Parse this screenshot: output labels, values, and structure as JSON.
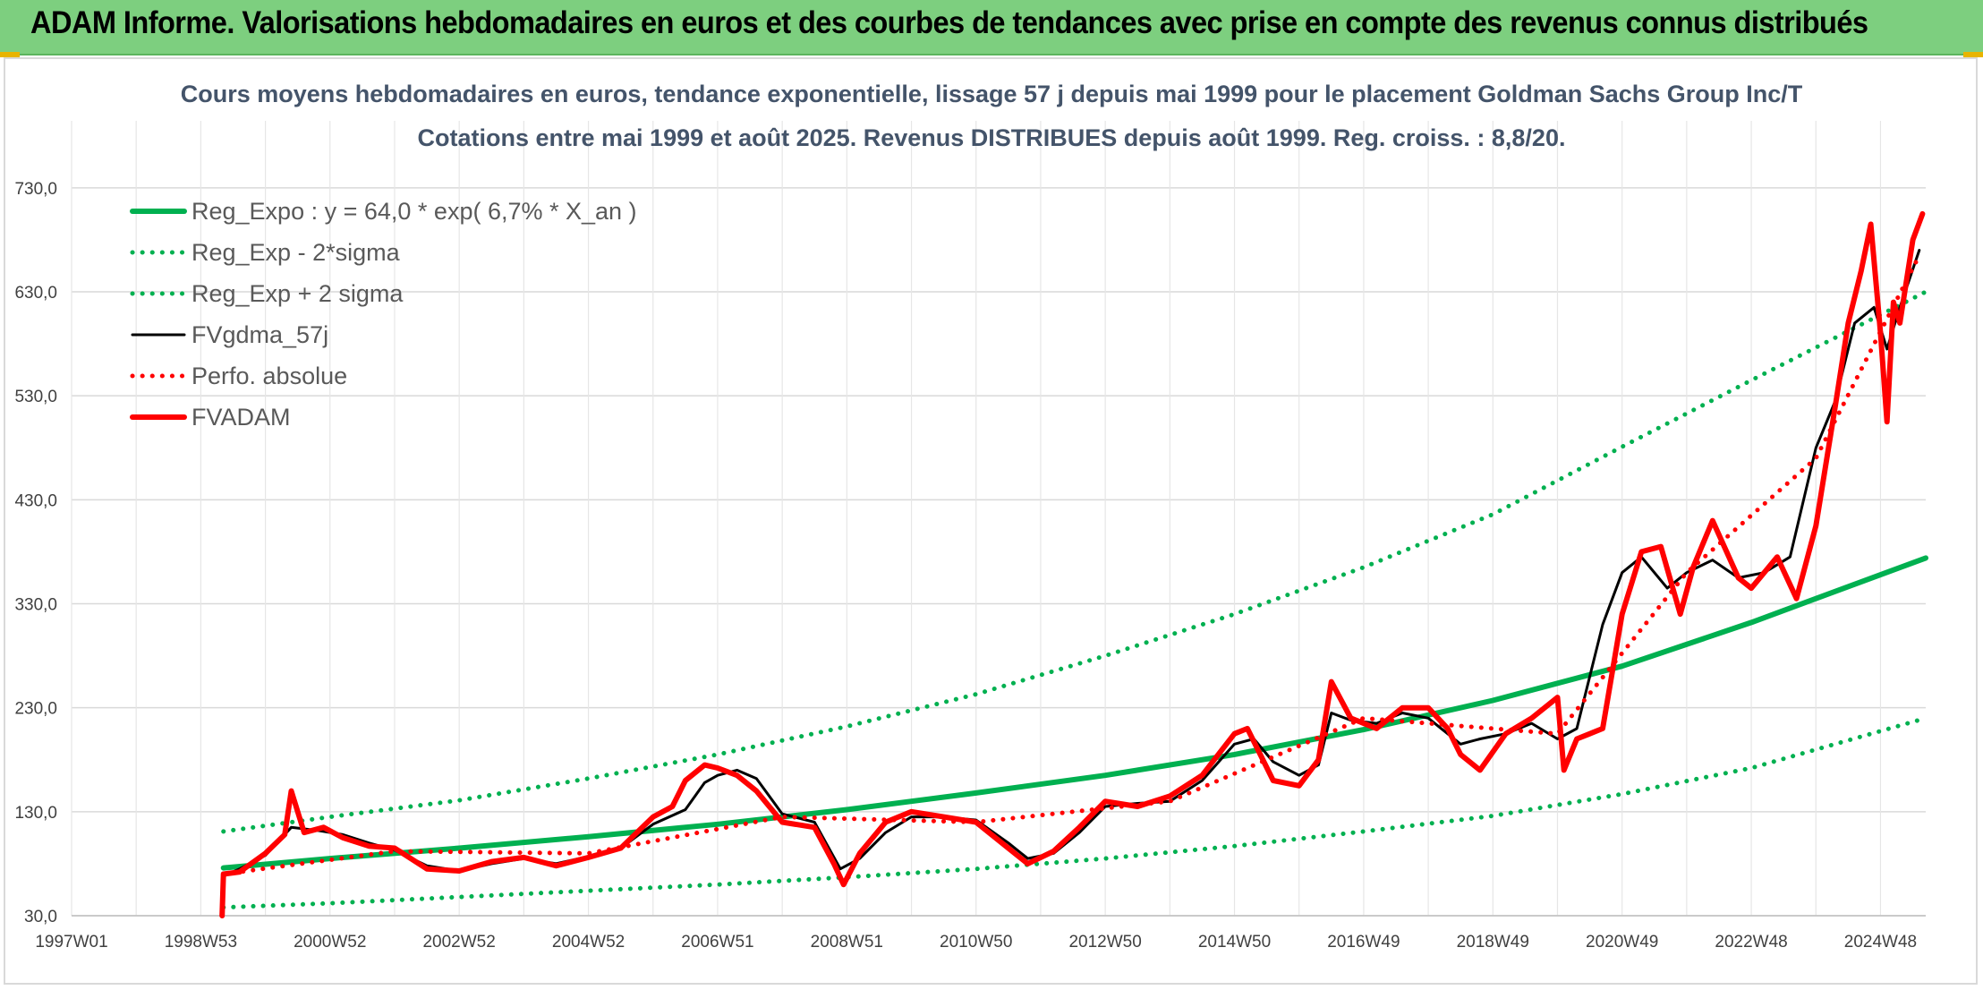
{
  "header": {
    "title": "ADAM Informe. Valorisations hebdomadaires en euros et des courbes de tendances avec prise en compte des revenus connus distribués"
  },
  "chart_data": {
    "type": "line",
    "title": "Cours moyens hebdomadaires en euros, tendance exponentielle, lissage 57 j depuis mai 1999 pour le placement Goldman Sachs Group Inc/T",
    "subtitle": "Cotations entre mai 1999 et août 2025. Revenus DISTRIBUES depuis août 1999. Reg. croiss. : 8,8/20.",
    "xlabel": "",
    "ylabel": "",
    "x_range": [
      1997.0,
      2025.7
    ],
    "ylim": [
      30,
      760
    ],
    "y_ticks": [
      "30,0",
      "130,0",
      "230,0",
      "330,0",
      "430,0",
      "530,0",
      "630,0",
      "730,0"
    ],
    "y_tick_values": [
      30,
      130,
      230,
      330,
      430,
      530,
      630,
      730
    ],
    "x_ticks": [
      "1997W01",
      "1998W53",
      "2000W52",
      "2002W52",
      "2004W52",
      "2006W51",
      "2008W51",
      "2010W50",
      "2012W50",
      "2014W50",
      "2016W49",
      "2018W49",
      "2020W49",
      "2022W48",
      "2024W48"
    ],
    "x_tick_values": [
      1997.0,
      1999.0,
      2001.0,
      2003.0,
      2005.0,
      2007.0,
      2009.0,
      2011.0,
      2013.0,
      2015.0,
      2017.0,
      2019.0,
      2021.0,
      2023.0,
      2025.0
    ],
    "grid": true,
    "legend_position": "top-left",
    "series": [
      {
        "name": "Reg_Expo : y = 64,0 * exp( 6,7% *  X_an )",
        "style": "solid-thick",
        "color": "#00b050",
        "x": [
          1999.35,
          2001,
          2003,
          2005,
          2007,
          2009,
          2011,
          2013,
          2015,
          2017,
          2019,
          2021,
          2023,
          2025.7
        ],
        "values": [
          76,
          85,
          95,
          106,
          118,
          132,
          148,
          165,
          185,
          209,
          237,
          270,
          312,
          374
        ]
      },
      {
        "name": "Reg_Exp - 2*sigma",
        "style": "dotted",
        "color": "#00b050",
        "x": [
          1999.35,
          2001,
          2003,
          2005,
          2007,
          2009,
          2011,
          2013,
          2015,
          2017,
          2019,
          2021,
          2023,
          2025.7
        ],
        "values": [
          38,
          42,
          48,
          54,
          60,
          67,
          75,
          85,
          97,
          111,
          126,
          147,
          172,
          220
        ]
      },
      {
        "name": "Reg_Exp + 2 sigma",
        "style": "dotted",
        "color": "#00b050",
        "x": [
          1999.35,
          2001,
          2003,
          2005,
          2007,
          2009,
          2011,
          2013,
          2015,
          2017,
          2019,
          2021,
          2023,
          2025.7
        ],
        "values": [
          111,
          125,
          141,
          162,
          185,
          212,
          243,
          280,
          320,
          365,
          416,
          481,
          545,
          630
        ]
      },
      {
        "name": "FVgdma_57j",
        "style": "solid",
        "color": "#000000",
        "x": [
          1999.35,
          1999.6,
          2000.0,
          2000.4,
          2000.8,
          2001.2,
          2001.6,
          2002.0,
          2002.5,
          2003.0,
          2003.5,
          2004.0,
          2004.5,
          2005.0,
          2005.5,
          2006.0,
          2006.5,
          2006.8,
          2007.0,
          2007.3,
          2007.6,
          2008.0,
          2008.5,
          2008.9,
          2009.2,
          2009.6,
          2010.0,
          2010.5,
          2011.0,
          2011.5,
          2011.8,
          2012.2,
          2012.6,
          2013.0,
          2013.5,
          2014.0,
          2014.5,
          2015.0,
          2015.3,
          2015.6,
          2016.0,
          2016.3,
          2016.5,
          2016.8,
          2017.2,
          2017.6,
          2018.0,
          2018.5,
          2018.8,
          2019.2,
          2019.6,
          2020.0,
          2020.3,
          2020.7,
          2021.0,
          2021.3,
          2021.7,
          2022.0,
          2022.4,
          2022.8,
          2023.2,
          2023.6,
          2024.0,
          2024.3,
          2024.6,
          2024.9,
          2025.1,
          2025.3,
          2025.6
        ],
        "values": [
          68,
          75,
          88,
          115,
          112,
          108,
          100,
          93,
          78,
          73,
          80,
          85,
          80,
          87,
          95,
          118,
          132,
          158,
          165,
          170,
          162,
          128,
          120,
          75,
          85,
          110,
          125,
          125,
          122,
          100,
          85,
          90,
          110,
          135,
          138,
          140,
          160,
          195,
          200,
          178,
          165,
          175,
          225,
          218,
          215,
          225,
          220,
          195,
          200,
          205,
          215,
          200,
          210,
          310,
          360,
          375,
          345,
          360,
          372,
          355,
          360,
          375,
          480,
          525,
          600,
          615,
          575,
          615,
          670
        ]
      },
      {
        "name": "Perfo. absolue",
        "style": "dotted",
        "color": "#ff0000",
        "x": [
          1999.35,
          2002.0,
          2005.0,
          2008.0,
          2011.0,
          2014.0,
          2017.0,
          2020.0,
          2022.0,
          2024.0,
          2025.6
        ],
        "values": [
          70,
          92,
          90,
          125,
          120,
          140,
          220,
          205,
          360,
          470,
          665
        ]
      },
      {
        "name": "FVADAM",
        "style": "solid-thick",
        "color": "#ff0000",
        "x": [
          1999.33,
          1999.35,
          1999.6,
          2000.0,
          2000.3,
          2000.4,
          2000.6,
          2000.9,
          2001.2,
          2001.6,
          2002.0,
          2002.5,
          2003.0,
          2003.5,
          2004.0,
          2004.5,
          2005.0,
          2005.5,
          2006.0,
          2006.3,
          2006.5,
          2006.8,
          2007.0,
          2007.3,
          2007.6,
          2008.0,
          2008.5,
          2008.8,
          2008.95,
          2009.2,
          2009.6,
          2010.0,
          2010.5,
          2011.0,
          2011.5,
          2011.8,
          2012.2,
          2012.6,
          2013.0,
          2013.5,
          2014.0,
          2014.5,
          2015.0,
          2015.2,
          2015.6,
          2016.0,
          2016.3,
          2016.5,
          2016.8,
          2017.2,
          2017.6,
          2018.0,
          2018.3,
          2018.5,
          2018.8,
          2019.2,
          2019.6,
          2020.0,
          2020.1,
          2020.3,
          2020.7,
          2021.0,
          2021.3,
          2021.6,
          2021.9,
          2022.1,
          2022.4,
          2022.8,
          2023.0,
          2023.4,
          2023.7,
          2024.0,
          2024.3,
          2024.5,
          2024.7,
          2024.85,
          2025.0,
          2025.1,
          2025.2,
          2025.3,
          2025.5,
          2025.65
        ],
        "values": [
          30,
          70,
          72,
          90,
          108,
          150,
          110,
          115,
          105,
          97,
          95,
          75,
          73,
          82,
          86,
          78,
          86,
          95,
          125,
          135,
          160,
          175,
          172,
          165,
          150,
          120,
          115,
          80,
          60,
          90,
          120,
          130,
          125,
          120,
          95,
          80,
          92,
          115,
          140,
          135,
          145,
          165,
          205,
          210,
          160,
          155,
          180,
          255,
          220,
          210,
          230,
          230,
          210,
          185,
          170,
          205,
          220,
          240,
          170,
          200,
          210,
          320,
          380,
          385,
          320,
          365,
          410,
          355,
          345,
          375,
          335,
          405,
          520,
          600,
          650,
          695,
          590,
          505,
          620,
          600,
          680,
          705
        ]
      }
    ]
  }
}
